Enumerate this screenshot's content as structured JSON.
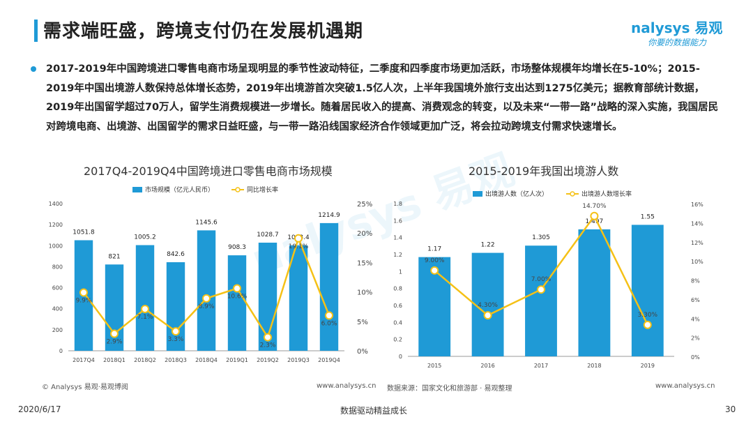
{
  "header": {
    "title": "需求端旺盛，跨境支付仍在发展机遇期",
    "logo_main": "nalysys 易观",
    "logo_sub": "你要的数据能力"
  },
  "body_text": "2017-2019年中国跨境进口零售电商市场呈现明显的季节性波动特征，二季度和四季度市场更加活跃，市场整体规模年均增长在5-10%；2015-2019年中国出境游人数保持总体增长态势，2019年出境游首次突破1.5亿人次，上半年我国境外旅行支出达到1275亿美元；据教育部统计数据，2019年出国留学超过70万人，留学生消费规模进一步增长。随着居民收入的提高、消费观念的转变，以及未来“一带一路”战略的深入实施，我国居民对跨境电商、出境游、出国留学的需求日益旺盛，与一带一路沿线国家经济合作领域更加广泛，将会拉动跨境支付需求快速增长。",
  "watermark": "nalysys 易观",
  "colors": {
    "accent": "#1f9ad6",
    "line": "#f5c116"
  },
  "chart_data": [
    {
      "type": "bar",
      "title": "2017Q4-2019Q4中国跨境进口零售电商市场规模",
      "categories": [
        "2017Q4",
        "2018Q1",
        "2018Q2",
        "2018Q3",
        "2018Q4",
        "2019Q1",
        "2019Q2",
        "2019Q3",
        "2019Q4"
      ],
      "series": [
        {
          "name": "市场规模（亿元人民币）",
          "type": "bar",
          "axis": "left",
          "color": "#1f9ad6",
          "values": [
            1051.8,
            821,
            1005.2,
            842.6,
            1145.6,
            908.3,
            1028.7,
            1003.4,
            1214.9
          ],
          "labels": [
            "1051.8",
            "821",
            "1005.2",
            "842.6",
            "1145.6",
            "908.3",
            "1028.7",
            "1003.4",
            "1214.9"
          ]
        },
        {
          "name": "同比增长率",
          "type": "line",
          "axis": "right",
          "color": "#f5c116",
          "values": [
            9.9,
            2.9,
            7.1,
            3.3,
            8.9,
            10.6,
            2.3,
            19.1,
            6.0
          ],
          "labels": [
            "9.9%",
            "2.9%",
            "7.1%",
            "3.3%",
            "8.9%",
            "10.6%",
            "2.3%",
            "19.1%",
            "6.0%"
          ]
        }
      ],
      "ylim": [
        0,
        1400
      ],
      "yticks": [
        "0",
        "200",
        "400",
        "600",
        "800",
        "1000",
        "1200",
        "1400"
      ],
      "y2lim": [
        0,
        25
      ],
      "y2ticks": [
        "0%",
        "5%",
        "10%",
        "15%",
        "20%",
        "25%"
      ],
      "source": "© Analysys 易观·易观博阅",
      "website": "www.analysys.cn",
      "legend": "top"
    },
    {
      "type": "bar",
      "title": "2015-2019年我国出境游人数",
      "categories": [
        "2015",
        "2016",
        "2017",
        "2018",
        "2019"
      ],
      "series": [
        {
          "name": "出境游人数（亿人次）",
          "type": "bar",
          "axis": "left",
          "color": "#1f9ad6",
          "values": [
            1.17,
            1.22,
            1.305,
            1.497,
            1.55
          ],
          "labels": [
            "1.17",
            "1.22",
            "1.305",
            "1.497",
            "1.55"
          ]
        },
        {
          "name": "出境游人数增长率",
          "type": "line",
          "axis": "right",
          "color": "#f5c116",
          "values": [
            9.0,
            4.3,
            7.0,
            14.7,
            3.3
          ],
          "labels": [
            "9.00%",
            "4.30%",
            "7.00%",
            "14.70%",
            "3.30%"
          ]
        }
      ],
      "ylim": [
        0,
        1.8
      ],
      "yticks": [
        "0",
        "0.2",
        "0.4",
        "0.6",
        "0.8",
        "1",
        "1.2",
        "1.4",
        "1.6",
        "1.8"
      ],
      "y2lim": [
        0,
        16
      ],
      "y2ticks": [
        "0%",
        "2%",
        "4%",
        "6%",
        "8%",
        "10%",
        "12%",
        "14%",
        "16%"
      ],
      "source": "数据来源：国家文化和旅游部 · 易观整理",
      "website": "www.analysys.cn",
      "legend": "top"
    }
  ],
  "footer": {
    "date": "2020/6/17",
    "slogan": "数据驱动精益成长",
    "page": "30"
  }
}
